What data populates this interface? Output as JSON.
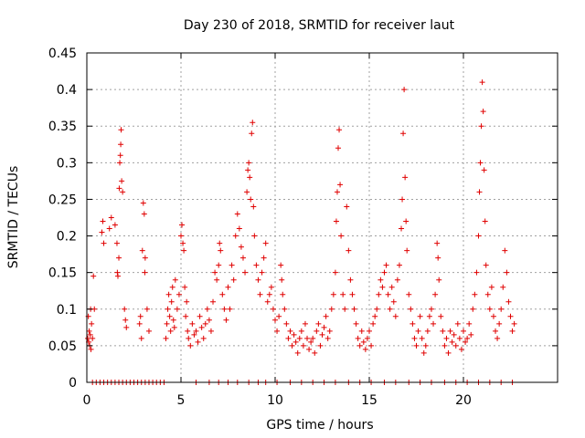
{
  "chart_data": {
    "type": "scatter",
    "title": "Day 230 of 2018, SRMTID for receiver laut",
    "xlabel": "GPS time / hours",
    "ylabel": "SRMTID / TECUs",
    "xlim": [
      0,
      25
    ],
    "ylim": [
      0,
      0.45
    ],
    "xticks": [
      0,
      5,
      10,
      15,
      20
    ],
    "yticks": [
      0,
      0.05,
      0.1,
      0.15,
      0.2,
      0.25,
      0.3,
      0.35,
      0.4,
      0.45
    ],
    "ytick_labels": [
      "0",
      "0.05",
      "0.1",
      "0.15",
      "0.2",
      "0.25",
      "0.3",
      "0.35",
      "0.4",
      "0.45"
    ],
    "grid": true,
    "marker": "+",
    "color": "#e00000",
    "series": [
      {
        "name": "SRMTID",
        "points": [
          [
            0.05,
            0.06
          ],
          [
            0.08,
            0.09
          ],
          [
            0.1,
            0.055
          ],
          [
            0.12,
            0.07
          ],
          [
            0.15,
            0.05
          ],
          [
            0.18,
            0.065
          ],
          [
            0.2,
            0.1
          ],
          [
            0.22,
            0.045
          ],
          [
            0.25,
            0.08
          ],
          [
            0.3,
            0.06
          ],
          [
            0.35,
            0.145
          ],
          [
            0.4,
            0.1
          ],
          [
            0.8,
            0.205
          ],
          [
            0.85,
            0.22
          ],
          [
            0.9,
            0.19
          ],
          [
            1.2,
            0.21
          ],
          [
            1.3,
            0.225
          ],
          [
            1.5,
            0.215
          ],
          [
            1.6,
            0.19
          ],
          [
            1.62,
            0.15
          ],
          [
            1.65,
            0.145
          ],
          [
            1.7,
            0.17
          ],
          [
            1.72,
            0.265
          ],
          [
            1.75,
            0.3
          ],
          [
            1.78,
            0.31
          ],
          [
            1.8,
            0.325
          ],
          [
            1.82,
            0.345
          ],
          [
            1.85,
            0.275
          ],
          [
            1.9,
            0.26
          ],
          [
            2.0,
            0.1
          ],
          [
            2.05,
            0.085
          ],
          [
            2.1,
            0.075
          ],
          [
            2.8,
            0.08
          ],
          [
            2.85,
            0.09
          ],
          [
            2.9,
            0.06
          ],
          [
            2.95,
            0.18
          ],
          [
            3.0,
            0.245
          ],
          [
            3.05,
            0.23
          ],
          [
            3.08,
            0.15
          ],
          [
            3.1,
            0.17
          ],
          [
            3.2,
            0.1
          ],
          [
            3.3,
            0.07
          ],
          [
            4.2,
            0.06
          ],
          [
            4.25,
            0.08
          ],
          [
            4.3,
            0.1
          ],
          [
            4.35,
            0.12
          ],
          [
            4.4,
            0.09
          ],
          [
            4.45,
            0.07
          ],
          [
            4.5,
            0.11
          ],
          [
            4.55,
            0.13
          ],
          [
            4.6,
            0.085
          ],
          [
            4.65,
            0.075
          ],
          [
            4.7,
            0.14
          ],
          [
            4.8,
            0.1
          ],
          [
            4.9,
            0.12
          ],
          [
            5.0,
            0.2
          ],
          [
            5.05,
            0.215
          ],
          [
            5.1,
            0.19
          ],
          [
            5.15,
            0.18
          ],
          [
            5.2,
            0.13
          ],
          [
            5.25,
            0.09
          ],
          [
            5.3,
            0.11
          ],
          [
            5.35,
            0.07
          ],
          [
            5.4,
            0.06
          ],
          [
            5.5,
            0.05
          ],
          [
            5.6,
            0.08
          ],
          [
            5.7,
            0.065
          ],
          [
            5.8,
            0.07
          ],
          [
            5.9,
            0.055
          ],
          [
            6.0,
            0.09
          ],
          [
            6.1,
            0.075
          ],
          [
            6.2,
            0.06
          ],
          [
            6.3,
            0.08
          ],
          [
            6.4,
            0.1
          ],
          [
            6.5,
            0.085
          ],
          [
            6.6,
            0.07
          ],
          [
            6.7,
            0.11
          ],
          [
            6.8,
            0.15
          ],
          [
            6.9,
            0.14
          ],
          [
            7.0,
            0.16
          ],
          [
            7.05,
            0.19
          ],
          [
            7.1,
            0.18
          ],
          [
            7.2,
            0.12
          ],
          [
            7.3,
            0.1
          ],
          [
            7.4,
            0.085
          ],
          [
            7.5,
            0.13
          ],
          [
            7.6,
            0.1
          ],
          [
            7.7,
            0.16
          ],
          [
            7.8,
            0.14
          ],
          [
            7.9,
            0.2
          ],
          [
            8.0,
            0.23
          ],
          [
            8.1,
            0.21
          ],
          [
            8.2,
            0.185
          ],
          [
            8.3,
            0.17
          ],
          [
            8.4,
            0.15
          ],
          [
            8.5,
            0.26
          ],
          [
            8.55,
            0.29
          ],
          [
            8.6,
            0.3
          ],
          [
            8.65,
            0.28
          ],
          [
            8.7,
            0.25
          ],
          [
            8.75,
            0.34
          ],
          [
            8.8,
            0.355
          ],
          [
            8.85,
            0.24
          ],
          [
            8.9,
            0.2
          ],
          [
            9.0,
            0.16
          ],
          [
            9.1,
            0.14
          ],
          [
            9.2,
            0.12
          ],
          [
            9.3,
            0.15
          ],
          [
            9.4,
            0.17
          ],
          [
            9.5,
            0.19
          ],
          [
            9.6,
            0.11
          ],
          [
            9.7,
            0.12
          ],
          [
            9.8,
            0.13
          ],
          [
            9.9,
            0.1
          ],
          [
            10.0,
            0.085
          ],
          [
            10.1,
            0.07
          ],
          [
            10.2,
            0.09
          ],
          [
            10.3,
            0.16
          ],
          [
            10.35,
            0.14
          ],
          [
            10.4,
            0.12
          ],
          [
            10.5,
            0.1
          ],
          [
            10.6,
            0.08
          ],
          [
            10.7,
            0.06
          ],
          [
            10.8,
            0.07
          ],
          [
            10.9,
            0.05
          ],
          [
            11.0,
            0.065
          ],
          [
            11.1,
            0.055
          ],
          [
            11.2,
            0.04
          ],
          [
            11.3,
            0.06
          ],
          [
            11.4,
            0.07
          ],
          [
            11.5,
            0.05
          ],
          [
            11.6,
            0.08
          ],
          [
            11.7,
            0.06
          ],
          [
            11.8,
            0.045
          ],
          [
            11.9,
            0.055
          ],
          [
            12.0,
            0.06
          ],
          [
            12.1,
            0.04
          ],
          [
            12.2,
            0.07
          ],
          [
            12.3,
            0.08
          ],
          [
            12.4,
            0.05
          ],
          [
            12.5,
            0.065
          ],
          [
            12.6,
            0.075
          ],
          [
            12.7,
            0.09
          ],
          [
            12.8,
            0.06
          ],
          [
            12.9,
            0.07
          ],
          [
            13.0,
            0.1
          ],
          [
            13.1,
            0.12
          ],
          [
            13.2,
            0.15
          ],
          [
            13.25,
            0.22
          ],
          [
            13.3,
            0.26
          ],
          [
            13.35,
            0.32
          ],
          [
            13.4,
            0.345
          ],
          [
            13.45,
            0.27
          ],
          [
            13.5,
            0.2
          ],
          [
            13.6,
            0.12
          ],
          [
            13.7,
            0.1
          ],
          [
            13.8,
            0.24
          ],
          [
            13.9,
            0.18
          ],
          [
            14.0,
            0.14
          ],
          [
            14.1,
            0.12
          ],
          [
            14.2,
            0.1
          ],
          [
            14.3,
            0.08
          ],
          [
            14.4,
            0.06
          ],
          [
            14.5,
            0.05
          ],
          [
            14.6,
            0.07
          ],
          [
            14.7,
            0.055
          ],
          [
            14.8,
            0.045
          ],
          [
            14.9,
            0.06
          ],
          [
            15.0,
            0.07
          ],
          [
            15.1,
            0.05
          ],
          [
            15.2,
            0.08
          ],
          [
            15.3,
            0.09
          ],
          [
            15.4,
            0.1
          ],
          [
            15.5,
            0.12
          ],
          [
            15.6,
            0.14
          ],
          [
            15.7,
            0.13
          ],
          [
            15.8,
            0.15
          ],
          [
            15.9,
            0.16
          ],
          [
            16.0,
            0.12
          ],
          [
            16.1,
            0.1
          ],
          [
            16.2,
            0.13
          ],
          [
            16.3,
            0.11
          ],
          [
            16.4,
            0.09
          ],
          [
            16.5,
            0.14
          ],
          [
            16.6,
            0.16
          ],
          [
            16.7,
            0.21
          ],
          [
            16.75,
            0.25
          ],
          [
            16.8,
            0.34
          ],
          [
            16.85,
            0.4
          ],
          [
            16.9,
            0.28
          ],
          [
            16.95,
            0.22
          ],
          [
            17.0,
            0.18
          ],
          [
            17.1,
            0.12
          ],
          [
            17.2,
            0.1
          ],
          [
            17.3,
            0.08
          ],
          [
            17.4,
            0.06
          ],
          [
            17.5,
            0.05
          ],
          [
            17.6,
            0.07
          ],
          [
            17.7,
            0.09
          ],
          [
            17.8,
            0.06
          ],
          [
            17.9,
            0.04
          ],
          [
            18.0,
            0.05
          ],
          [
            18.1,
            0.07
          ],
          [
            18.2,
            0.09
          ],
          [
            18.3,
            0.1
          ],
          [
            18.4,
            0.08
          ],
          [
            18.5,
            0.12
          ],
          [
            18.6,
            0.19
          ],
          [
            18.65,
            0.17
          ],
          [
            18.7,
            0.14
          ],
          [
            18.8,
            0.09
          ],
          [
            18.9,
            0.07
          ],
          [
            19.0,
            0.05
          ],
          [
            19.1,
            0.06
          ],
          [
            19.2,
            0.04
          ],
          [
            19.3,
            0.07
          ],
          [
            19.4,
            0.055
          ],
          [
            19.5,
            0.065
          ],
          [
            19.6,
            0.05
          ],
          [
            19.7,
            0.08
          ],
          [
            19.8,
            0.06
          ],
          [
            19.9,
            0.045
          ],
          [
            20.0,
            0.07
          ],
          [
            20.1,
            0.055
          ],
          [
            20.2,
            0.06
          ],
          [
            20.3,
            0.08
          ],
          [
            20.4,
            0.065
          ],
          [
            20.5,
            0.1
          ],
          [
            20.6,
            0.12
          ],
          [
            20.7,
            0.15
          ],
          [
            20.8,
            0.2
          ],
          [
            20.85,
            0.26
          ],
          [
            20.9,
            0.3
          ],
          [
            20.95,
            0.35
          ],
          [
            21.0,
            0.41
          ],
          [
            21.05,
            0.37
          ],
          [
            21.1,
            0.29
          ],
          [
            21.15,
            0.22
          ],
          [
            21.2,
            0.16
          ],
          [
            21.3,
            0.12
          ],
          [
            21.4,
            0.1
          ],
          [
            21.5,
            0.13
          ],
          [
            21.6,
            0.09
          ],
          [
            21.7,
            0.07
          ],
          [
            21.8,
            0.06
          ],
          [
            21.9,
            0.08
          ],
          [
            22.0,
            0.1
          ],
          [
            22.1,
            0.13
          ],
          [
            22.2,
            0.18
          ],
          [
            22.3,
            0.15
          ],
          [
            22.4,
            0.11
          ],
          [
            22.5,
            0.09
          ],
          [
            22.6,
            0.07
          ],
          [
            22.7,
            0.08
          ]
        ],
        "zero_points_x": [
          0.3,
          0.5,
          0.7,
          0.9,
          1.1,
          1.3,
          1.5,
          1.7,
          1.9,
          2.1,
          2.3,
          2.5,
          2.7,
          2.9,
          3.1,
          3.3,
          3.5,
          3.7,
          3.9,
          4.1,
          5.8,
          6.5,
          7.0,
          7.5,
          8.0,
          8.6,
          9.1,
          9.5,
          10.1,
          10.8,
          11.4,
          12.0,
          12.6,
          13.2,
          13.9,
          14.5,
          15.1,
          15.8,
          16.4,
          17.1,
          17.7,
          18.3,
          19.0,
          19.6,
          20.2,
          20.8,
          21.4,
          22.0,
          22.6
        ]
      }
    ]
  }
}
